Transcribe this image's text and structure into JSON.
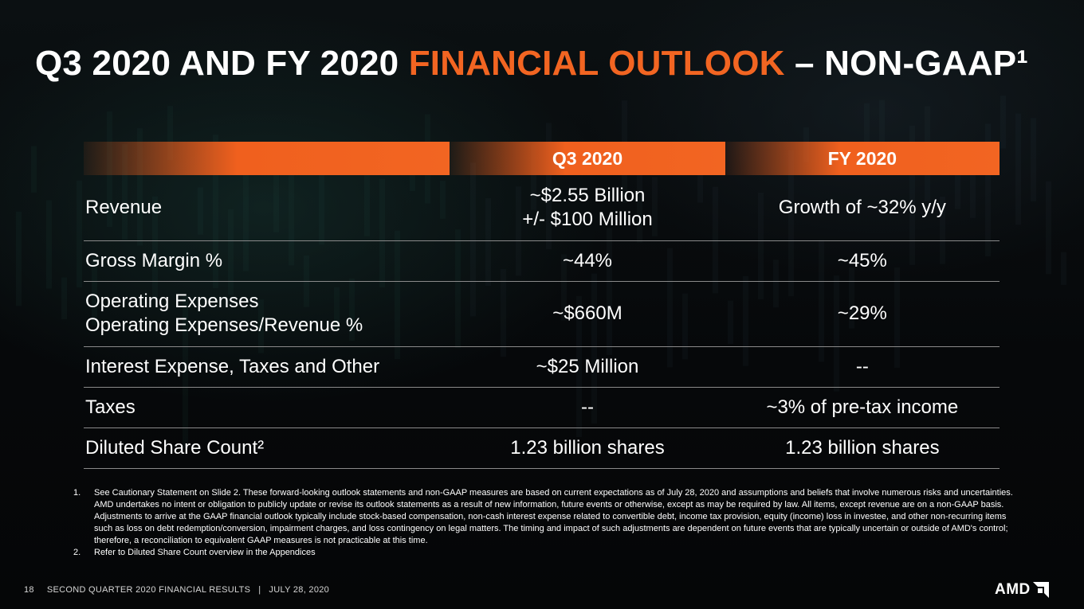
{
  "title": {
    "part1": "Q3 2020 AND FY 2020 ",
    "accent": "FINANCIAL OUTLOOK",
    "part2": " – NON-GAAP¹",
    "accent_color": "#f26522"
  },
  "table": {
    "columns": [
      "",
      "Q3 2020",
      "FY 2020"
    ],
    "rows": [
      {
        "metric": [
          "Revenue"
        ],
        "q3": [
          "~$2.55 Billion",
          "+/- $100 Million"
        ],
        "fy": [
          "Growth of ~32% y/y"
        ]
      },
      {
        "metric": [
          "Gross Margin %"
        ],
        "q3": [
          "~44%"
        ],
        "fy": [
          "~45%"
        ]
      },
      {
        "metric": [
          "Operating Expenses",
          "Operating Expenses/Revenue %"
        ],
        "q3": [
          "~$660M"
        ],
        "fy": [
          "~29%"
        ]
      },
      {
        "metric": [
          "Interest Expense, Taxes and Other"
        ],
        "q3": [
          "~$25 Million"
        ],
        "fy": [
          "--"
        ]
      },
      {
        "metric": [
          "Taxes"
        ],
        "q3": [
          "--"
        ],
        "fy": [
          "~3% of pre-tax income"
        ]
      },
      {
        "metric": [
          "Diluted Share Count²"
        ],
        "q3": [
          "1.23 billion shares"
        ],
        "fy": [
          "1.23 billion shares"
        ]
      }
    ]
  },
  "footnotes": [
    {
      "num": "1.",
      "text": "See Cautionary Statement on Slide 2. These forward-looking outlook statements and non-GAAP measures are based on current expectations as of July 28, 2020 and assumptions and beliefs that involve numerous risks and uncertainties. AMD undertakes no intent or obligation to publicly update or revise its outlook statements as a result of new information, future events or otherwise, except as may be required by law.  All items, except revenue are on a non-GAAP basis. Adjustments to arrive at the GAAP financial outlook typically include stock-based compensation, non-cash interest expense related to convertible debt, income tax provision, equity (income) loss in investee, and other non-recurring items such as loss on debt redemption/conversion, impairment charges, and loss contingency on legal matters. The timing and impact of such adjustments are dependent on future events that  are typically uncertain or outside of AMD's control; therefore, a reconciliation to equivalent GAAP measures is not practicable at this time."
    },
    {
      "num": "2.",
      "text": "Refer to Diluted Share Count overview in the Appendices"
    }
  ],
  "footer": {
    "page_number": "18",
    "deck_title": "SECOND QUARTER 2020 FINANCIAL RESULTS",
    "separator": "|",
    "date": "JULY 28, 2020"
  },
  "logo": {
    "text": "AMD",
    "icon": "amd-arrow-icon"
  }
}
